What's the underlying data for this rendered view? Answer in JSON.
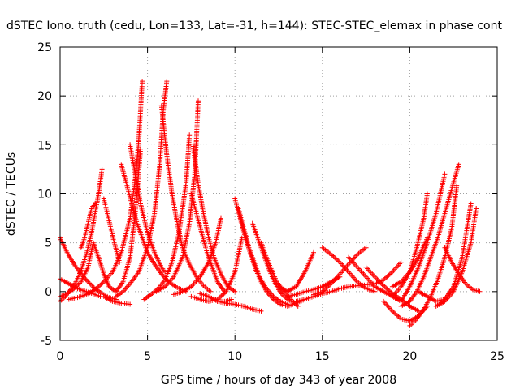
{
  "chart_data": {
    "type": "scatter",
    "title": "dSTEC Iono. truth (cedu, Lon=133, Lat=-31, h=144): STEC-STEC_elemax in phase cont",
    "xlabel": "GPS time / hours of day 343 of year 2008",
    "ylabel": "dSTEC  / TECUs",
    "xlim": [
      0,
      25
    ],
    "ylim": [
      -5,
      25
    ],
    "xticks": [
      0,
      5,
      10,
      15,
      20,
      25
    ],
    "yticks": [
      -5,
      0,
      5,
      10,
      15,
      20,
      25
    ],
    "xtick_labels": [
      "0",
      "5",
      "10",
      "15",
      "20",
      "25"
    ],
    "ytick_labels": [
      "-5",
      "0",
      "5",
      "10",
      "15",
      "20",
      "25"
    ],
    "grid": true,
    "marker": "plus",
    "color": "#ff0000",
    "series": [
      {
        "x": [
          0.0,
          0.4,
          0.8,
          1.2,
          1.6,
          2.0,
          2.4,
          2.8,
          3.2
        ],
        "y": [
          5.5,
          4.0,
          2.8,
          1.8,
          1.0,
          0.3,
          -0.2,
          -0.6,
          -0.8
        ]
      },
      {
        "x": [
          0.0,
          0.5,
          1.0,
          1.5,
          2.0,
          2.3
        ],
        "y": [
          1.3,
          0.8,
          0.3,
          0.0,
          -0.3,
          -0.5
        ]
      },
      {
        "x": [
          0.0,
          0.3,
          0.6,
          0.9,
          1.2,
          1.5,
          1.8,
          2.0,
          2.2,
          2.4
        ],
        "y": [
          -1.0,
          -0.5,
          0.2,
          1.0,
          2.2,
          3.8,
          6.0,
          8.0,
          10.0,
          12.5
        ]
      },
      {
        "x": [
          0.0,
          0.4,
          0.8,
          1.2,
          1.6,
          1.9,
          2.2,
          2.5,
          2.8,
          3.2,
          3.6,
          4.0,
          4.3,
          4.6
        ],
        "y": [
          -0.5,
          -0.2,
          0.3,
          1.0,
          2.5,
          5.0,
          3.5,
          1.8,
          0.5,
          0.0,
          1.0,
          3.5,
          8.0,
          14.5
        ]
      },
      {
        "x": [
          1.2,
          1.4,
          1.6,
          1.8,
          2.0
        ],
        "y": [
          4.5,
          5.5,
          7.0,
          8.5,
          9.0
        ]
      },
      {
        "x": [
          2.5,
          2.7,
          2.9,
          3.1,
          3.4
        ],
        "y": [
          9.5,
          8.0,
          6.5,
          5.0,
          3.0
        ]
      },
      {
        "x": [
          0.5,
          1.0,
          1.5,
          2.0,
          2.5,
          3.0,
          3.5,
          4.0,
          4.3,
          4.5,
          4.7
        ],
        "y": [
          -0.8,
          -0.6,
          -0.3,
          0.2,
          1.0,
          2.0,
          4.0,
          7.5,
          11.5,
          15.5,
          21.5
        ]
      },
      {
        "x": [
          2.5,
          3.0,
          3.5,
          4.0
        ],
        "y": [
          -0.5,
          -1.0,
          -1.2,
          -1.3
        ]
      },
      {
        "x": [
          3.5,
          3.8,
          4.1,
          4.4,
          4.7,
          5.0,
          5.4,
          5.8,
          6.2,
          6.7,
          7.2
        ],
        "y": [
          13.0,
          11.0,
          9.0,
          7.0,
          5.5,
          4.0,
          2.8,
          1.8,
          1.0,
          0.4,
          0.0
        ]
      },
      {
        "x": [
          4.0,
          4.3,
          4.6,
          5.0,
          5.4,
          5.8,
          6.0
        ],
        "y": [
          15.0,
          12.0,
          9.0,
          6.0,
          4.0,
          2.5,
          2.0
        ]
      },
      {
        "x": [
          3.2,
          3.6,
          4.0,
          4.5,
          5.0,
          5.4,
          5.7,
          5.9,
          6.1
        ],
        "y": [
          -0.5,
          0.0,
          0.8,
          2.0,
          4.5,
          8.0,
          13.0,
          18.5,
          21.5
        ]
      },
      {
        "x": [
          5.8,
          6.1,
          6.4,
          6.7,
          7.0,
          7.4,
          7.8,
          8.2,
          8.6
        ],
        "y": [
          19.0,
          14.0,
          10.0,
          7.0,
          4.5,
          2.8,
          1.5,
          0.6,
          0.0
        ]
      },
      {
        "x": [
          4.8,
          5.2,
          5.6,
          6.0,
          6.4,
          6.8,
          7.2,
          7.4
        ],
        "y": [
          -0.8,
          -0.3,
          0.3,
          1.2,
          3.0,
          6.0,
          11.0,
          16.0
        ]
      },
      {
        "x": [
          5.5,
          6.0,
          6.5,
          7.0,
          7.4,
          7.7,
          7.9
        ],
        "y": [
          0.0,
          0.5,
          1.5,
          3.5,
          7.0,
          12.0,
          19.5
        ]
      },
      {
        "x": [
          7.6,
          7.9,
          8.2,
          8.5,
          8.8,
          9.2,
          9.6,
          10.0
        ],
        "y": [
          15.0,
          11.0,
          8.0,
          5.5,
          3.5,
          1.8,
          0.5,
          0.0
        ]
      },
      {
        "x": [
          7.5,
          7.8,
          8.1,
          8.4,
          8.7,
          9.0,
          9.4
        ],
        "y": [
          10.0,
          8.0,
          6.0,
          4.0,
          2.5,
          1.0,
          0.0
        ]
      },
      {
        "x": [
          6.5,
          7.0,
          7.5,
          8.0,
          8.5,
          8.9,
          9.2
        ],
        "y": [
          -0.3,
          0.0,
          0.5,
          1.5,
          3.0,
          5.0,
          7.5
        ]
      },
      {
        "x": [
          7.5,
          8.0,
          8.5,
          9.0,
          9.5,
          10.0,
          10.4
        ],
        "y": [
          -0.5,
          -0.8,
          -1.0,
          -0.8,
          0.0,
          2.0,
          5.5
        ]
      },
      {
        "x": [
          8.0,
          8.5,
          9.0,
          9.5,
          9.8
        ],
        "y": [
          -0.2,
          -0.5,
          -1.0,
          -1.0,
          -0.8
        ]
      },
      {
        "x": [
          10.0,
          10.3,
          10.6,
          10.9,
          11.2,
          11.5,
          11.8,
          12.2,
          12.6,
          13.0,
          13.5,
          14.0
        ],
        "y": [
          9.5,
          7.5,
          5.5,
          3.8,
          2.2,
          1.0,
          0.0,
          -0.8,
          -1.3,
          -1.5,
          -1.2,
          -0.8
        ]
      },
      {
        "x": [
          10.2,
          10.5,
          10.8,
          11.1,
          11.4,
          11.8,
          12.2,
          12.6,
          13.0
        ],
        "y": [
          8.5,
          6.5,
          4.5,
          3.0,
          1.5,
          0.3,
          -0.5,
          -1.0,
          -1.3
        ]
      },
      {
        "x": [
          11.0,
          11.3,
          11.6,
          11.9,
          12.2,
          12.5,
          12.8,
          13.2
        ],
        "y": [
          7.0,
          5.5,
          4.0,
          2.5,
          1.2,
          0.2,
          -0.5,
          -1.0
        ]
      },
      {
        "x": [
          11.5,
          11.8,
          12.1,
          12.4,
          12.8,
          13.2,
          13.6
        ],
        "y": [
          5.0,
          3.5,
          2.2,
          1.0,
          0.0,
          -0.8,
          -1.5
        ]
      },
      {
        "x": [
          9.0,
          9.5,
          10.0,
          10.5,
          11.0,
          11.5
        ],
        "y": [
          -1.0,
          -1.2,
          -1.3,
          -1.5,
          -1.8,
          -2.0
        ]
      },
      {
        "x": [
          12.5,
          13.0,
          13.5,
          14.0,
          14.5
        ],
        "y": [
          0.5,
          0.0,
          0.5,
          2.0,
          4.0
        ]
      },
      {
        "x": [
          13.0,
          13.5,
          14.0,
          14.5,
          15.0,
          15.5,
          16.0
        ],
        "y": [
          -0.5,
          -0.3,
          0.0,
          0.2,
          0.5,
          1.0,
          1.5
        ]
      },
      {
        "x": [
          14.5,
          15.0,
          15.5,
          16.0,
          16.5,
          17.0,
          17.5
        ],
        "y": [
          -0.3,
          0.0,
          0.8,
          1.8,
          2.8,
          3.8,
          4.5
        ]
      },
      {
        "x": [
          15.0,
          15.5,
          16.0,
          16.5,
          17.0,
          17.5,
          18.0
        ],
        "y": [
          4.5,
          3.8,
          3.0,
          2.0,
          1.0,
          0.3,
          0.0
        ]
      },
      {
        "x": [
          13.5,
          14.0,
          14.5,
          15.0,
          15.5,
          16.0,
          16.5,
          17.0,
          17.5,
          18.0,
          18.5,
          19.0,
          19.5
        ],
        "y": [
          -1.0,
          -0.8,
          -0.5,
          -0.2,
          0.0,
          0.3,
          0.5,
          0.6,
          0.7,
          0.8,
          1.2,
          2.0,
          3.0
        ]
      },
      {
        "x": [
          16.5,
          17.0,
          17.5,
          18.0,
          18.5,
          19.0,
          19.5
        ],
        "y": [
          3.5,
          2.5,
          1.5,
          0.5,
          0.0,
          -0.5,
          -1.0
        ]
      },
      {
        "x": [
          17.5,
          18.0,
          18.5,
          19.0,
          19.5,
          20.0,
          20.5
        ],
        "y": [
          2.5,
          1.5,
          0.6,
          -0.2,
          -0.8,
          -1.5,
          -2.0
        ]
      },
      {
        "x": [
          18.5,
          19.0,
          19.5,
          20.0,
          20.5,
          21.0
        ],
        "y": [
          -1.0,
          -2.0,
          -2.8,
          -3.0,
          -2.5,
          -1.5
        ]
      },
      {
        "x": [
          19.5,
          20.0,
          20.4,
          20.8,
          21.2,
          21.6,
          22.0,
          22.4,
          22.8
        ],
        "y": [
          -1.5,
          -1.0,
          0.0,
          1.5,
          3.5,
          5.5,
          8.0,
          10.5,
          13.0
        ]
      },
      {
        "x": [
          20.0,
          20.4,
          20.8,
          21.2,
          21.6,
          22.0,
          22.4,
          22.7
        ],
        "y": [
          -3.5,
          -2.8,
          -1.8,
          -0.5,
          1.2,
          3.5,
          6.5,
          11.0
        ]
      },
      {
        "x": [
          19.0,
          19.5,
          20.0,
          20.4,
          20.8,
          21.0
        ],
        "y": [
          -0.5,
          0.5,
          2.0,
          4.5,
          7.5,
          10.0
        ]
      },
      {
        "x": [
          19.5,
          20.0,
          20.5,
          21.0,
          21.5,
          22.0
        ],
        "y": [
          -1.0,
          0.5,
          2.5,
          5.0,
          8.0,
          12.0
        ]
      },
      {
        "x": [
          20.5,
          21.0,
          21.5,
          22.0,
          22.5,
          23.0,
          23.5
        ],
        "y": [
          0.0,
          -0.5,
          -1.0,
          -0.8,
          0.5,
          3.5,
          9.0
        ]
      },
      {
        "x": [
          22.0,
          22.4,
          22.8,
          23.2,
          23.6,
          24.0
        ],
        "y": [
          4.5,
          3.0,
          1.8,
          0.8,
          0.2,
          0.0
        ]
      },
      {
        "x": [
          21.5,
          22.0,
          22.5,
          23.0,
          23.5,
          23.8
        ],
        "y": [
          -1.5,
          -1.0,
          0.0,
          2.0,
          5.0,
          8.5
        ]
      },
      {
        "x": [
          19.0,
          19.5,
          20.0,
          20.5,
          21.0
        ],
        "y": [
          0.5,
          1.0,
          2.0,
          3.5,
          5.5
        ]
      }
    ]
  }
}
